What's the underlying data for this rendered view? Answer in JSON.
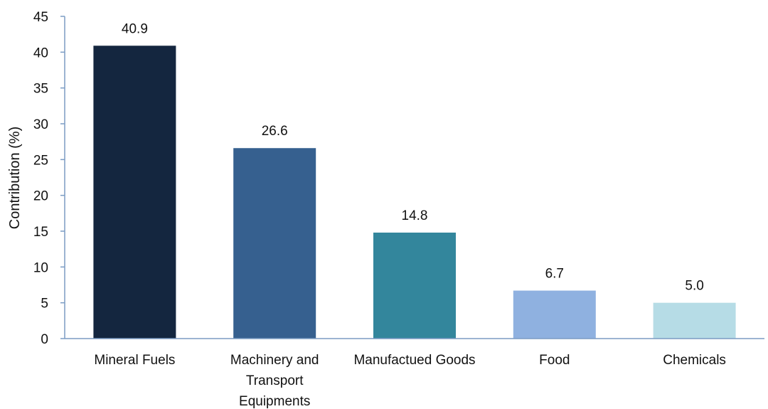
{
  "chart_data": {
    "type": "bar",
    "title": "",
    "xlabel": "",
    "ylabel": "Contribution (%)",
    "ylim": [
      0,
      45
    ],
    "yticks": [
      0,
      5,
      10,
      15,
      20,
      25,
      30,
      35,
      40,
      45
    ],
    "categories": [
      [
        "Mineral Fuels"
      ],
      [
        "Machinery and",
        "Transport",
        "Equipments"
      ],
      [
        "Manufactued Goods"
      ],
      [
        "Food"
      ],
      [
        "Chemicals"
      ]
    ],
    "values": [
      40.9,
      26.6,
      14.8,
      6.7,
      5.0
    ],
    "data_labels": [
      "40.9",
      "26.6",
      "14.8",
      "6.7",
      "5.0"
    ],
    "colors": [
      "#14263f",
      "#36608f",
      "#33869c",
      "#8fb1e0",
      "#b6dce6"
    ],
    "axis_color": "#7b9cc4",
    "grid": false,
    "legend": "none"
  }
}
